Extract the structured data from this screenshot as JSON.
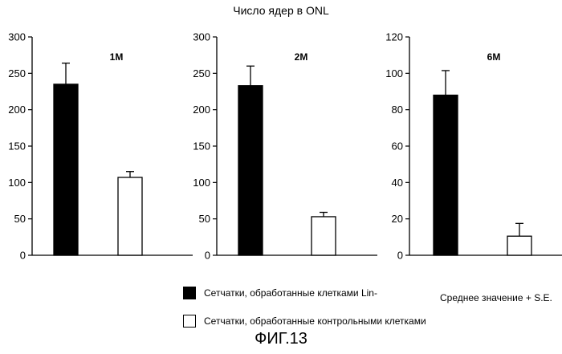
{
  "figure": {
    "title": "Число ядер в ONL",
    "label": "ФИГ.13",
    "note": "Среднее значение + S.E."
  },
  "legend": {
    "items": [
      {
        "label": "Сетчатки, обработанные клетками Lin-",
        "color": "#000000"
      },
      {
        "label": "Сетчатки, обработанные контрольными клетками",
        "color": "#ffffff"
      }
    ]
  },
  "chart_data": [
    {
      "type": "bar",
      "title": "1M",
      "categories": [
        "Сетчатки, обработанные клетками Lin-",
        "Сетчатки, обработанные контрольными клетками"
      ],
      "values": [
        235,
        107
      ],
      "errors": [
        29,
        8
      ],
      "colors": [
        "#000000",
        "#ffffff"
      ],
      "ylim": [
        0,
        300
      ],
      "yticks": [
        0,
        50,
        100,
        150,
        200,
        250,
        300
      ],
      "xlabel": "",
      "ylabel": ""
    },
    {
      "type": "bar",
      "title": "2M",
      "categories": [
        "Сетчатки, обработанные клетками Lin-",
        "Сетчатки, обработанные контрольными клетками"
      ],
      "values": [
        233,
        53
      ],
      "errors": [
        27,
        6
      ],
      "colors": [
        "#000000",
        "#ffffff"
      ],
      "ylim": [
        0,
        300
      ],
      "yticks": [
        0,
        50,
        100,
        150,
        200,
        250,
        300
      ],
      "xlabel": "",
      "ylabel": ""
    },
    {
      "type": "bar",
      "title": "6M",
      "categories": [
        "Сетчатки, обработанные клетками Lin-",
        "Сетчатки, обработанные контрольными клетками"
      ],
      "values": [
        88,
        10.5
      ],
      "errors": [
        13.5,
        7
      ],
      "colors": [
        "#000000",
        "#ffffff"
      ],
      "ylim": [
        0,
        120
      ],
      "yticks": [
        0,
        20,
        40,
        60,
        80,
        100,
        120
      ],
      "xlabel": "",
      "ylabel": ""
    }
  ]
}
